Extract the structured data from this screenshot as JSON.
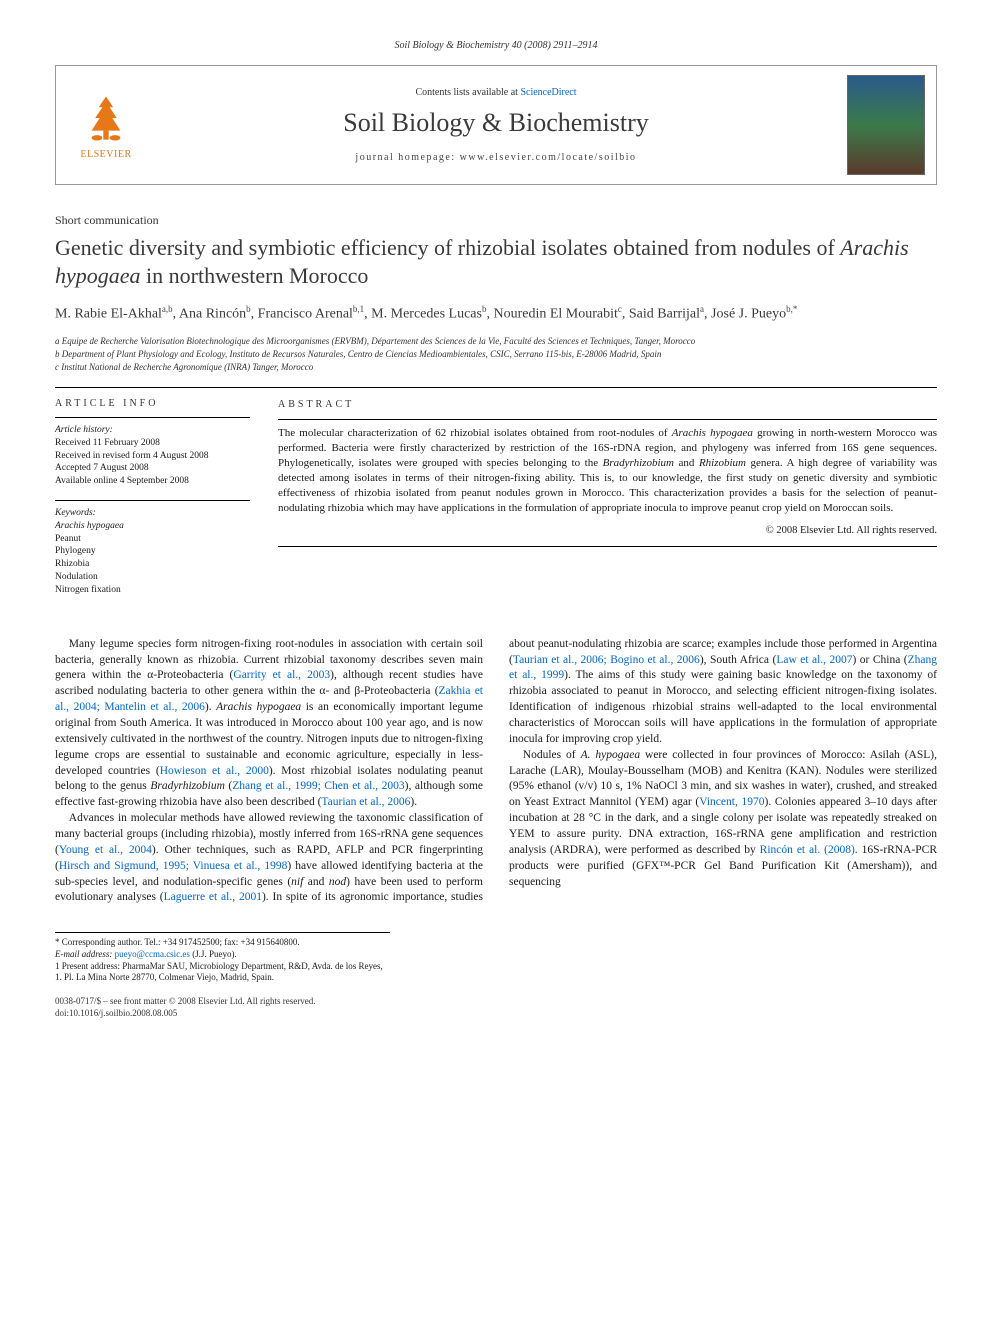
{
  "running_head": "Soil Biology & Biochemistry 40 (2008) 2911–2914",
  "masthead": {
    "publisher": "ELSEVIER",
    "contents_prefix": "Contents lists available at ",
    "contents_link": "ScienceDirect",
    "journal": "Soil Biology & Biochemistry",
    "homepage_prefix": "journal homepage: ",
    "homepage_url": "www.elsevier.com/locate/soilbio",
    "cover_label": "Soil Biology & Biochemistry"
  },
  "article": {
    "type": "Short communication",
    "title_html": "Genetic diversity and symbiotic efficiency of rhizobial isolates obtained from nodules of <em>Arachis hypogaea</em> in northwestern Morocco",
    "authors_html": "M. Rabie El-Akhal<sup>a,b</sup>, Ana Rincón<sup>b</sup>, Francisco Arenal<sup>b,1</sup>, M. Mercedes Lucas<sup>b</sup>, Nouredin El Mourabit<sup>c</sup>, Said Barrijal<sup>a</sup>, José J. Pueyo<sup>b,*</sup>",
    "affiliations": [
      "a Equipe de Recherche Valorisation Biotechnologique des Microorganismes (ERVBM), Département des Sciences de la Vie, Faculté des Sciences et Techniques, Tanger, Morocco",
      "b Department of Plant Physiology and Ecology, Instituto de Recursos Naturales, Centro de Ciencias Medioambientales, CSIC, Serrano 115-bis, E-28006 Madrid, Spain",
      "c Institut National de Recherche Agronomique (INRA) Tanger, Morocco"
    ]
  },
  "info": {
    "label": "ARTICLE INFO",
    "history_hd": "Article history:",
    "history": [
      "Received 11 February 2008",
      "Received in revised form 4 August 2008",
      "Accepted 7 August 2008",
      "Available online 4 September 2008"
    ],
    "keywords_hd": "Keywords:",
    "keywords": [
      "Arachis hypogaea",
      "Peanut",
      "Phylogeny",
      "Rhizobia",
      "Nodulation",
      "Nitrogen fixation"
    ]
  },
  "abstract": {
    "label": "ABSTRACT",
    "text_html": "The molecular characterization of 62 rhizobial isolates obtained from root-nodules of <em>Arachis hypogaea</em> growing in north-western Morocco was performed. Bacteria were firstly characterized by restriction of the 16S-rDNA region, and phylogeny was inferred from 16S gene sequences. Phylogenetically, isolates were grouped with species belonging to the <em>Bradyrhizobium</em> and <em>Rhizobium</em> genera. A high degree of variability was detected among isolates in terms of their nitrogen-fixing ability. This is, to our knowledge, the first study on genetic diversity and symbiotic effectiveness of rhizobia isolated from peanut nodules grown in Morocco. This characterization provides a basis for the selection of peanut-nodulating rhizobia which may have applications in the formulation of appropriate inocula to improve peanut crop yield on Moroccan soils.",
    "copyright": "© 2008 Elsevier Ltd. All rights reserved."
  },
  "body": {
    "p1_html": "Many legume species form nitrogen-fixing root-nodules in association with certain soil bacteria, generally known as rhizobia. Current rhizobial taxonomy describes seven main genera within the α-Proteobacteria (<a class=\"ref\">Garrity et al., 2003</a>), although recent studies have ascribed nodulating bacteria to other genera within the α- and β-Proteobacteria (<a class=\"ref\">Zakhia et al., 2004; Mantelin et al., 2006</a>). <em>Arachis hypogaea</em> is an economically important legume original from South America. It was introduced in Morocco about 100 year ago, and is now extensively cultivated in the northwest of the country. Nitrogen inputs due to nitrogen-fixing legume crops are essential to sustainable and economic agriculture, especially in less-developed countries (<a class=\"ref\">Howieson et al., 2000</a>). Most rhizobial isolates nodulating peanut belong to the genus <em>Bradyrhizobium</em> (<a class=\"ref\">Zhang et al., 1999; Chen et al., 2003</a>), although some effective fast-growing rhizobia have also been described (<a class=\"ref\">Taurian et al., 2006</a>).",
    "p2_html": "Advances in molecular methods have allowed reviewing the taxonomic classification of many bacterial groups (including rhizobia), mostly inferred from 16S-rRNA gene sequences (<a class=\"ref\">Young et al., 2004</a>). Other techniques, such as RAPD, AFLP and PCR fingerprinting (<a class=\"ref\">Hirsch and Sigmund, 1995; Vinuesa et al., 1998</a>) have allowed identifying bacteria at the sub-species level, and nodulation-specific genes (<em>nif</em> and <em>nod</em>) have been used to perform evolutionary analyses (<a class=\"ref\">Laguerre et al., 2001</a>). In spite of its agronomic importance, studies about peanut-nodulating rhizobia are scarce; examples include those performed in Argentina (<a class=\"ref\">Taurian et al., 2006; Bogino et al., 2006</a>), South Africa (<a class=\"ref\">Law et al., 2007</a>) or China (<a class=\"ref\">Zhang et al., 1999</a>). The aims of this study were gaining basic knowledge on the taxonomy of rhizobia associated to peanut in Morocco, and selecting efficient nitrogen-fixing isolates. Identification of indigenous rhizobial strains well-adapted to the local environmental characteristics of Moroccan soils will have applications in the formulation of appropriate inocula for improving crop yield.",
    "p3_html": "Nodules of <em>A. hypogaea</em> were collected in four provinces of Morocco: Asilah (ASL), Larache (LAR), Moulay-Bousselham (MOB) and Kenitra (KAN). Nodules were sterilized (95% ethanol (v/v) 10 s, 1% NaOCl 3 min, and six washes in water), crushed, and streaked on Yeast Extract Mannitol (YEM) agar (<a class=\"ref\">Vincent, 1970</a>). Colonies appeared 3–10 days after incubation at 28 °C in the dark, and a single colony per isolate was repeatedly streaked on YEM to assure purity. DNA extraction, 16S-rRNA gene amplification and restriction analysis (ARDRA), were performed as described by <a class=\"ref\">Rincón et al. (2008)</a>. 16S-rRNA-PCR products were purified (GFX™-PCR Gel Band Purification Kit (Amersham)), and sequencing"
  },
  "footnotes": {
    "corr": "* Corresponding author. Tel.: +34 917452500; fax: +34 915640800.",
    "email_label": "E-mail address:",
    "email": "pueyo@ccma.csic.es",
    "email_author": "(J.J. Pueyo).",
    "present": "1 Present address: PharmaMar SAU, Microbiology Department, R&D, Avda. de los Reyes, 1. Pl. La Mina Norte 28770, Colmenar Viejo, Madrid, Spain."
  },
  "footer": {
    "line1": "0038-0717/$ – see front matter © 2008 Elsevier Ltd. All rights reserved.",
    "line2": "doi:10.1016/j.soilbio.2008.08.005"
  },
  "colors": {
    "link": "#0066cc",
    "elsevier_orange": "#e67817",
    "text": "#1a1a1a",
    "heading": "#3a3a3a"
  }
}
